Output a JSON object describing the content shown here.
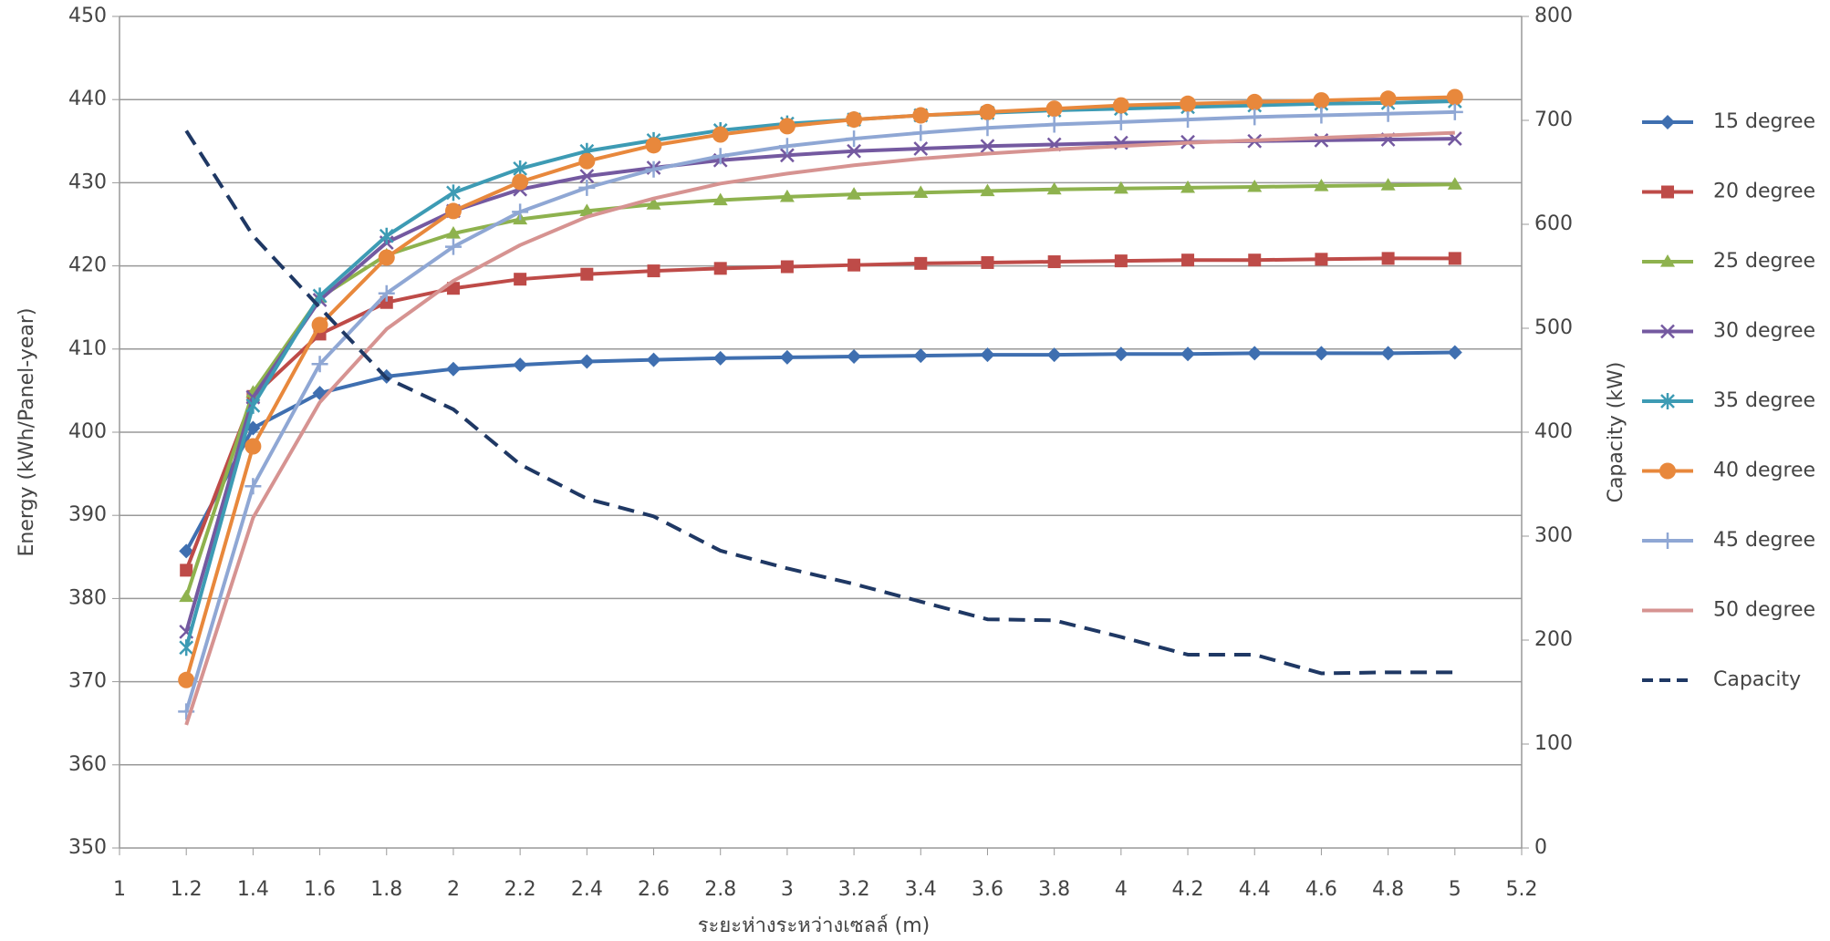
{
  "chart_data": {
    "type": "line",
    "x_label": "ระยะห่างระหว่างเซลล์ (m)",
    "y_label": "Energy (kWh/Panel-year)",
    "y2_label": "Capacity (kW)",
    "x": [
      1.2,
      1.4,
      1.6,
      1.8,
      2,
      2.2,
      2.4,
      2.6,
      2.8,
      3,
      3.2,
      3.4,
      3.6,
      3.8,
      4,
      4.2,
      4.4,
      4.6,
      4.8,
      5
    ],
    "xlim": [
      1,
      5.2
    ],
    "xticks": [
      1,
      1.2,
      1.4,
      1.6,
      1.8,
      2,
      2.2,
      2.4,
      2.6,
      2.8,
      3,
      3.2,
      3.4,
      3.6,
      3.8,
      4,
      4.2,
      4.4,
      4.6,
      4.8,
      5,
      5.2
    ],
    "ylim": [
      350,
      450
    ],
    "yticks": [
      350,
      360,
      370,
      380,
      390,
      400,
      410,
      420,
      430,
      440,
      450
    ],
    "y2lim": [
      0,
      800
    ],
    "y2ticks": [
      0,
      100,
      200,
      300,
      400,
      500,
      600,
      700,
      800
    ],
    "grid": true,
    "legend": "right",
    "series": [
      {
        "name": "15 degree",
        "color": "#3f6fb0",
        "marker": "diamond",
        "values": [
          385.7,
          400.5,
          404.7,
          406.7,
          407.6,
          408.1,
          408.5,
          408.7,
          408.9,
          409.0,
          409.1,
          409.2,
          409.3,
          409.3,
          409.4,
          409.4,
          409.5,
          409.5,
          409.5,
          409.6
        ]
      },
      {
        "name": "20 degree",
        "color": "#be4b48",
        "marker": "square",
        "values": [
          383.4,
          404.3,
          411.8,
          415.6,
          417.3,
          418.4,
          419.0,
          419.4,
          419.7,
          419.9,
          420.1,
          420.3,
          420.4,
          420.5,
          420.6,
          420.7,
          420.7,
          420.8,
          420.9,
          420.9
        ]
      },
      {
        "name": "25 degree",
        "color": "#8eb24e",
        "marker": "triangle",
        "values": [
          380.2,
          404.8,
          416.2,
          421.3,
          423.9,
          425.6,
          426.6,
          427.4,
          427.9,
          428.3,
          428.6,
          428.8,
          429.0,
          429.2,
          429.3,
          429.4,
          429.5,
          429.6,
          429.7,
          429.8
        ]
      },
      {
        "name": "30 degree",
        "color": "#7459a0",
        "marker": "x",
        "values": [
          376.0,
          404.2,
          415.9,
          422.8,
          426.6,
          429.2,
          430.8,
          431.8,
          432.7,
          433.3,
          433.8,
          434.1,
          434.4,
          434.6,
          434.8,
          434.9,
          435.0,
          435.1,
          435.2,
          435.3
        ]
      },
      {
        "name": "35 degree",
        "color": "#3d9bb4",
        "marker": "asterisk",
        "values": [
          374.1,
          403.2,
          416.4,
          423.6,
          428.8,
          431.7,
          433.8,
          435.1,
          436.3,
          437.1,
          437.6,
          438.1,
          438.4,
          438.7,
          438.9,
          439.1,
          439.3,
          439.5,
          439.6,
          439.8
        ]
      },
      {
        "name": "40 degree",
        "color": "#e8883c",
        "marker": "circle",
        "values": [
          370.2,
          398.3,
          412.9,
          421.0,
          426.6,
          430.1,
          432.6,
          434.5,
          435.8,
          436.8,
          437.6,
          438.1,
          438.5,
          438.9,
          439.3,
          439.5,
          439.7,
          439.9,
          440.1,
          440.3
        ]
      },
      {
        "name": "45 degree",
        "color": "#8fa7d4",
        "marker": "plus",
        "values": [
          366.4,
          393.5,
          408.2,
          416.7,
          422.3,
          426.5,
          429.4,
          431.6,
          433.2,
          434.4,
          435.3,
          436.0,
          436.6,
          437.0,
          437.3,
          437.6,
          437.9,
          438.1,
          438.3,
          438.5
        ]
      },
      {
        "name": "50 degree",
        "color": "#d69391",
        "marker": "none",
        "values": [
          364.8,
          389.7,
          403.6,
          412.4,
          418.2,
          422.5,
          425.9,
          428.1,
          429.9,
          431.1,
          432.1,
          432.9,
          433.5,
          434.0,
          434.4,
          434.8,
          435.1,
          435.4,
          435.7,
          436.0
        ]
      },
      {
        "name": "Capacity",
        "color": "#1f3864",
        "marker": "none",
        "dashed": true,
        "axis": "y2",
        "values": [
          690,
          589,
          520,
          452,
          422,
          369,
          336,
          319,
          286,
          269,
          254,
          237,
          220,
          219,
          203,
          186,
          186,
          168,
          169,
          169
        ]
      }
    ]
  }
}
